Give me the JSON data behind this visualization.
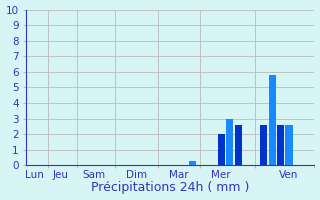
{
  "title": "",
  "xlabel": "Précipitations 24h ( mm )",
  "background_color": "#d8f5f5",
  "ylim": [
    0,
    10
  ],
  "yticks": [
    0,
    1,
    2,
    3,
    4,
    5,
    6,
    7,
    8,
    9,
    10
  ],
  "xlim": [
    -0.5,
    16.5
  ],
  "day_labels": [
    "Lun",
    "Jeu",
    "Sam",
    "Dim",
    "Mar",
    "Mer",
    "Ven"
  ],
  "day_tick_positions": [
    0.0,
    1.5,
    3.5,
    6.0,
    8.5,
    11.0,
    15.0
  ],
  "grid_x_positions": [
    0.75,
    2.5,
    4.75,
    7.25,
    9.75,
    13.0,
    16.5
  ],
  "bars": [
    {
      "x": 9.3,
      "height": 0.3,
      "color": "#1a88ff"
    },
    {
      "x": 11.0,
      "height": 2.0,
      "color": "#0033cc"
    },
    {
      "x": 11.5,
      "height": 3.0,
      "color": "#1a88ff"
    },
    {
      "x": 12.0,
      "height": 2.6,
      "color": "#0033cc"
    },
    {
      "x": 13.5,
      "height": 2.6,
      "color": "#0033cc"
    },
    {
      "x": 14.0,
      "height": 5.8,
      "color": "#1a88ff"
    },
    {
      "x": 14.5,
      "height": 2.6,
      "color": "#0033cc"
    },
    {
      "x": 15.0,
      "height": 2.6,
      "color": "#1a88ff"
    }
  ],
  "bar_width": 0.42,
  "grid_color": "#bbbbbb",
  "tick_color": "#3333bb",
  "xlabel_fontsize": 9,
  "tick_fontsize": 7.5
}
